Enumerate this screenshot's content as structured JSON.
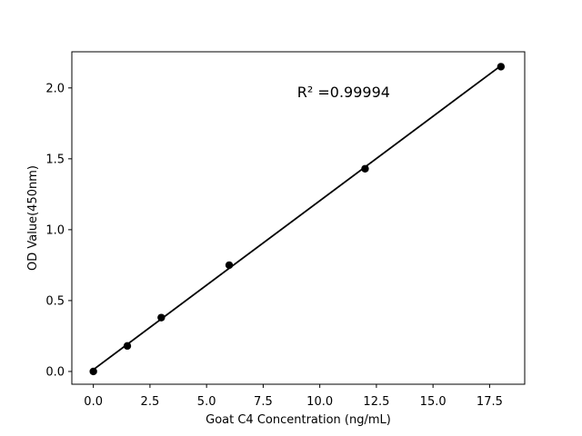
{
  "figure": {
    "background": "#ffffff"
  },
  "chart_data": {
    "type": "scatter",
    "title": "",
    "xlabel": "Goat C4 Concentration (ng/mL)",
    "ylabel": "OD Value(450nm)",
    "annotation": {
      "text": "R² =0.99994",
      "x": 9.0,
      "y": 1.935
    },
    "points": {
      "x": [
        0,
        1.5,
        3,
        6,
        12,
        18
      ],
      "y": [
        0.0,
        0.18,
        0.38,
        0.75,
        1.43,
        2.15
      ]
    },
    "fit_line": {
      "x1": 0,
      "y1": 0.013,
      "x2": 18,
      "y2": 2.157
    },
    "x_ticks": [
      {
        "value": 0,
        "label": "0.0"
      },
      {
        "value": 2.5,
        "label": "2.5"
      },
      {
        "value": 5,
        "label": "5.0"
      },
      {
        "value": 7.5,
        "label": "7.5"
      },
      {
        "value": 10,
        "label": "10.0"
      },
      {
        "value": 12.5,
        "label": "12.5"
      },
      {
        "value": 15,
        "label": "15.0"
      },
      {
        "value": 17.5,
        "label": "17.5"
      }
    ],
    "y_ticks": [
      {
        "value": 0.0,
        "label": "0.0"
      },
      {
        "value": 0.5,
        "label": "0.5"
      },
      {
        "value": 1.0,
        "label": "1.0"
      },
      {
        "value": 1.5,
        "label": "1.5"
      },
      {
        "value": 2.0,
        "label": "2.0"
      }
    ],
    "xlim": [
      -0.95,
      19.05
    ],
    "ylim": [
      -0.09,
      2.255
    ],
    "grid": false,
    "legend": null,
    "colors": {
      "marker": "#000000",
      "line": "#000000",
      "text": "#000000",
      "spine": "#000000",
      "background": "#ffffff"
    }
  }
}
